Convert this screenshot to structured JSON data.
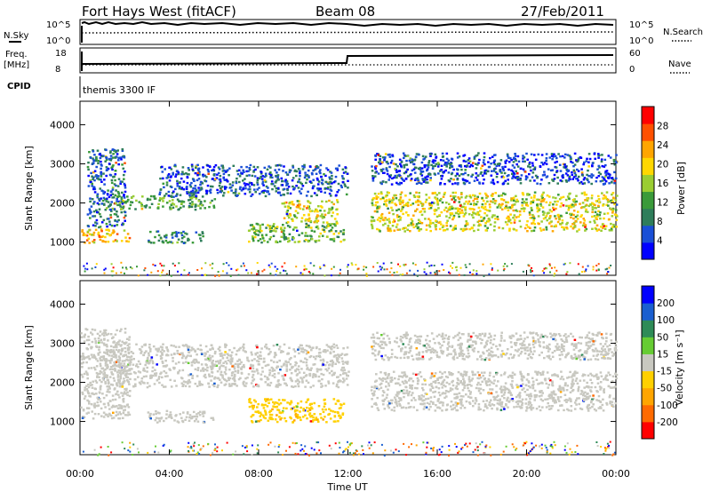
{
  "header": {
    "radar": "Fort Hays West (fitACF)",
    "beam": "Beam 08",
    "date": "27/Feb/2011"
  },
  "status_panel": {
    "nsky_label": "N.Sky",
    "nsearch_label": "N.Search",
    "noise_ticks": [
      "10^5",
      "10^0"
    ],
    "freq_label_1": "Freq.",
    "freq_label_2": "[MHz]",
    "freq_ticks": [
      "18",
      "8"
    ],
    "nave_label": "Nave",
    "nave_ticks": [
      "60",
      "0"
    ],
    "cpid_label": "CPID",
    "cpid_value": "themis 3300 IF"
  },
  "chart_data": [
    {
      "type": "heatmap",
      "title": "",
      "xlabel": "Time UT",
      "ylabel": "Slant Range [km]",
      "x_ticks": [
        "00:00",
        "04:00",
        "08:00",
        "12:00",
        "16:00",
        "20:00",
        "00:00"
      ],
      "y_ticks": [
        1000,
        2000,
        3000,
        4000
      ],
      "ylim": [
        150,
        4600
      ],
      "colorbar": {
        "label": "Power [dB]",
        "ticks": [
          "28",
          "24",
          "20",
          "16",
          "12",
          "8",
          "4"
        ],
        "colors": [
          "#0000ff",
          "#1a4fd6",
          "#2e7d5a",
          "#3a9a3a",
          "#9acd32",
          "#ffd700",
          "#ffa500",
          "#ff5000",
          "#ff0000"
        ]
      },
      "regions": [
        {
          "t0": 0.0,
          "t1": 2.2,
          "r0": 1000,
          "r1": 1350,
          "value": 22
        },
        {
          "t0": 0.3,
          "t1": 2.0,
          "r0": 1400,
          "r1": 3400,
          "value": 7
        },
        {
          "t0": 1.0,
          "t1": 6.0,
          "r0": 1850,
          "r1": 2200,
          "value": 12
        },
        {
          "t0": 3.0,
          "t1": 5.5,
          "r0": 1000,
          "r1": 1300,
          "value": 10
        },
        {
          "t0": 3.5,
          "t1": 12.0,
          "r0": 2200,
          "r1": 3000,
          "value": 6
        },
        {
          "t0": 7.5,
          "t1": 11.8,
          "r0": 1000,
          "r1": 1500,
          "value": 14
        },
        {
          "t0": 9.0,
          "t1": 11.5,
          "r0": 1500,
          "r1": 2100,
          "value": 18
        },
        {
          "t0": 13.0,
          "t1": 24.0,
          "r0": 1300,
          "r1": 2300,
          "value": 18
        },
        {
          "t0": 13.0,
          "t1": 24.0,
          "r0": 2500,
          "r1": 3300,
          "value": 5
        }
      ]
    },
    {
      "type": "heatmap",
      "title": "",
      "xlabel": "Time UT",
      "ylabel": "Slant Range [km]",
      "x_ticks": [
        "00:00",
        "04:00",
        "08:00",
        "12:00",
        "16:00",
        "20:00",
        "00:00"
      ],
      "y_ticks": [
        1000,
        2000,
        3000,
        4000
      ],
      "ylim": [
        150,
        4600
      ],
      "colorbar": {
        "label": "Velocity [m s⁻¹]",
        "ticks": [
          "200",
          "100",
          "50",
          "15",
          "-15",
          "-50",
          "-100",
          "-200"
        ],
        "colors": [
          "#ff0000",
          "#ff6a00",
          "#ffa500",
          "#ffd000",
          "#c8c8c0",
          "#66cc33",
          "#2e8b57",
          "#1a5fd0",
          "#0000ff"
        ]
      },
      "regions": [
        {
          "t0": 0.0,
          "t1": 2.2,
          "r0": 1100,
          "r1": 3400,
          "value": 0
        },
        {
          "t0": 1.0,
          "t1": 12.0,
          "r0": 1900,
          "r1": 3000,
          "value": 0
        },
        {
          "t0": 3.0,
          "t1": 6.0,
          "r0": 1000,
          "r1": 1300,
          "value": 0
        },
        {
          "t0": 7.5,
          "t1": 11.8,
          "r0": 1000,
          "r1": 1600,
          "value": -60
        },
        {
          "t0": 13.0,
          "t1": 24.0,
          "r0": 1300,
          "r1": 2300,
          "value": 0
        },
        {
          "t0": 13.0,
          "t1": 24.0,
          "r0": 2600,
          "r1": 3300,
          "value": 0
        }
      ]
    }
  ]
}
